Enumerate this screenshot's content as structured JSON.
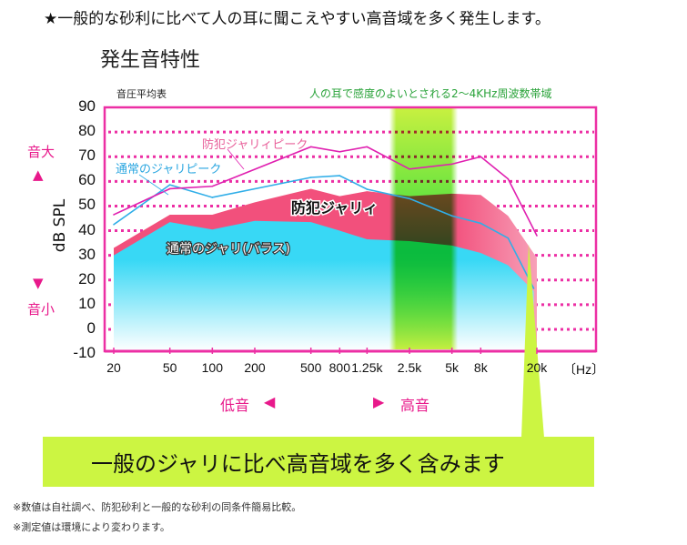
{
  "headline": "★一般的な砂利に比べて人の耳に聞こえやすい高音域を多く発生します。",
  "side_labels": {
    "loud": "音大",
    "loud_arrow": "▲",
    "quiet_arrow": "▼",
    "quiet": "音小"
  },
  "direction": {
    "low": "低音",
    "low_arrow": "◀",
    "high_arrow": "▶",
    "high": "高音"
  },
  "callout": "一般のジャリに比べ高音域を多く含みます",
  "footnotes": [
    "※数値は自社調べ、防犯砂利と一般的な砂利の同条件簡易比較。",
    "※測定値は環境により変わります。"
  ],
  "colors": {
    "frame": "#ec2fa4",
    "peak_bouhan": "#e020b0",
    "peak_normal": "#30aee8",
    "area_bouhan": "#f2507c",
    "area_normal": "#38d8f5",
    "band": "#b8f030",
    "callout": "#ccf542"
  },
  "chart_data": {
    "type": "area",
    "title": "発生音特性",
    "subtitle": "音圧平均表",
    "band_annotation": "人の耳で感度のよいとされる2〜4KHz周波数帯域",
    "band_range_hz": [
      1800,
      5500
    ],
    "ylabel": "dB SPL",
    "xlabel_unit": "〔Hz〕",
    "ylim": [
      -10,
      90
    ],
    "yticks": [
      "90",
      "80",
      "70",
      "60",
      "50",
      "40",
      "30",
      "20",
      "10",
      "0",
      "-10"
    ],
    "xscale": "log",
    "xlim": [
      20,
      20000
    ],
    "xticks": [
      {
        "f": 20,
        "label": "20"
      },
      {
        "f": 50,
        "label": "50"
      },
      {
        "f": 100,
        "label": "100"
      },
      {
        "f": 200,
        "label": "200"
      },
      {
        "f": 500,
        "label": "500"
      },
      {
        "f": 800,
        "label": "800"
      },
      {
        "f": 1250,
        "label": "1.25k"
      },
      {
        "f": 2500,
        "label": "2.5k"
      },
      {
        "f": 5000,
        "label": "5k"
      },
      {
        "f": 8000,
        "label": "8k"
      },
      {
        "f": 20000,
        "label": "20k"
      }
    ],
    "grid": "dotted horizontal at 0–80",
    "series": [
      {
        "name": "通常のジャリ(バラス)",
        "kind": "area",
        "x": [
          20,
          50,
          100,
          200,
          500,
          800,
          1250,
          2500,
          5000,
          8000,
          12500,
          19000
        ],
        "y": [
          30,
          43.5,
          40.5,
          44,
          43.5,
          40,
          36.5,
          35.8,
          34,
          31,
          26,
          15.5
        ]
      },
      {
        "name": "防犯ジャリィ",
        "kind": "area",
        "x": [
          20,
          50,
          100,
          200,
          500,
          800,
          1250,
          2500,
          5000,
          8000,
          12500,
          20000
        ],
        "y": [
          33,
          46.5,
          46.5,
          51.5,
          57,
          54,
          56,
          54,
          55,
          54.5,
          46,
          29
        ]
      },
      {
        "name": "通常のジャリピーク",
        "kind": "line",
        "x": [
          20,
          50,
          100,
          500,
          800,
          1250,
          2500,
          5000,
          8000,
          12500,
          19000
        ],
        "y": [
          42.5,
          58.6,
          53.5,
          61.6,
          62.3,
          56.8,
          53,
          46,
          43,
          37,
          16.6
        ]
      },
      {
        "name": "防犯ジャリィピーク",
        "kind": "line",
        "x": [
          20,
          50,
          100,
          500,
          800,
          1250,
          2500,
          5000,
          8000,
          12500,
          20000
        ],
        "y": [
          46.5,
          57,
          58,
          74,
          72,
          74,
          65,
          67,
          70,
          61,
          38
        ]
      }
    ]
  }
}
